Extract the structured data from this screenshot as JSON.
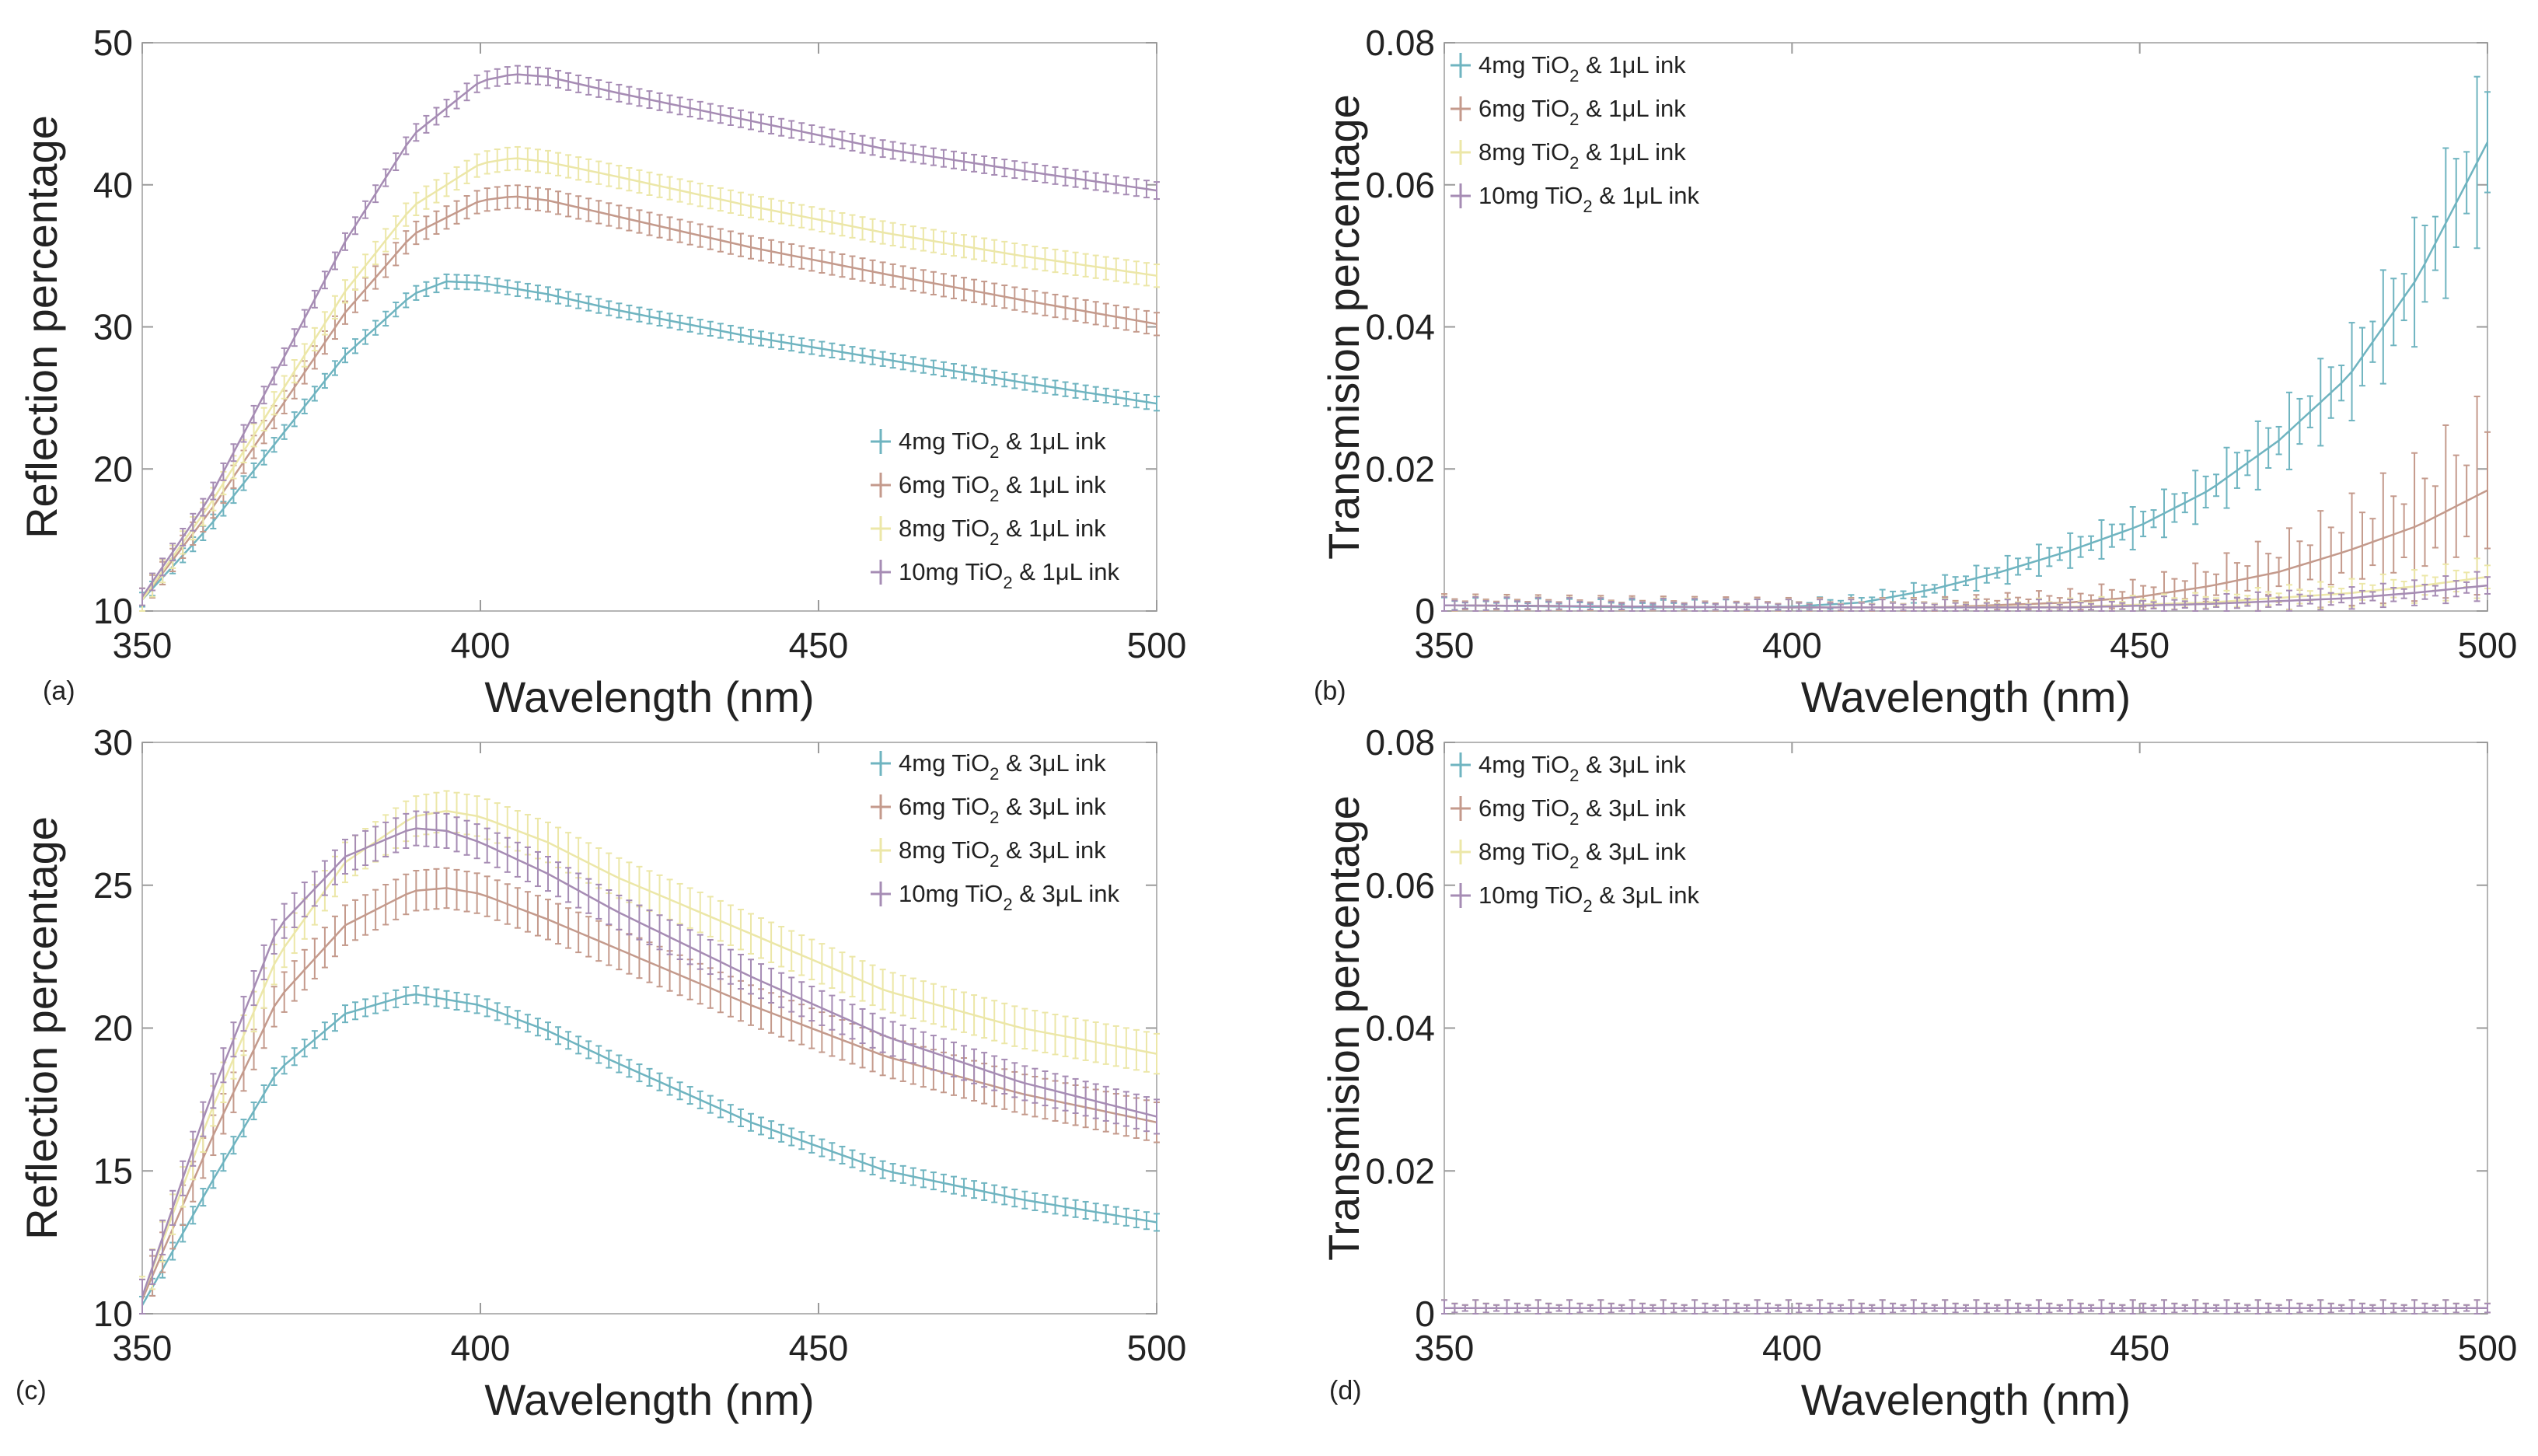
{
  "colors": {
    "4mg": "#6fb4c0",
    "6mg": "#c49a8c",
    "8mg": "#ece7a8",
    "10mg": "#a68cb4"
  },
  "chart_data": [
    {
      "panel": "(a)",
      "type": "line",
      "xlabel": "Wavelength (nm)",
      "ylabel": "Reflection percentage",
      "xlim": [
        350,
        500
      ],
      "ylim": [
        10,
        50
      ],
      "xticks": [
        "350",
        "400",
        "450",
        "500"
      ],
      "yticks": [
        "10",
        "20",
        "30",
        "40",
        "50"
      ],
      "legend_position": "bottom-right",
      "series": [
        {
          "name": "4mg TiO2 & 1µL ink",
          "key": "4mg",
          "legend_pre": "4mg TiO",
          "legend_sub": "2",
          "legend_post": " & 1μL ink",
          "x": [
            350,
            360,
            370,
            380,
            390,
            395,
            400,
            410,
            420,
            440,
            460,
            480,
            500
          ],
          "y": [
            10.8,
            16.0,
            22.0,
            28.0,
            32.3,
            33.2,
            33.1,
            32.3,
            31.2,
            29.3,
            27.7,
            26.1,
            24.6
          ],
          "err": 0.5
        },
        {
          "name": "6mg TiO2 & 1µL ink",
          "key": "6mg",
          "legend_pre": "6mg TiO",
          "legend_sub": "2",
          "legend_post": " & 1μL ink",
          "x": [
            350,
            360,
            370,
            380,
            390,
            400,
            405,
            410,
            420,
            440,
            460,
            480,
            500
          ],
          "y": [
            10.8,
            17.0,
            24.0,
            31.0,
            36.5,
            38.9,
            39.2,
            38.9,
            37.8,
            35.6,
            33.7,
            31.9,
            30.2
          ],
          "err": 0.8
        },
        {
          "name": "8mg TiO2 & 1µL ink",
          "key": "8mg",
          "legend_pre": "8mg TiO",
          "legend_sub": "2",
          "legend_post": " & 1μL ink",
          "x": [
            350,
            360,
            370,
            380,
            390,
            400,
            405,
            410,
            420,
            440,
            460,
            480,
            500
          ],
          "y": [
            10.8,
            17.5,
            25.0,
            32.5,
            38.5,
            41.5,
            41.9,
            41.6,
            40.6,
            38.5,
            36.6,
            35.0,
            33.6
          ],
          "err": 0.8
        },
        {
          "name": "10mg TiO2 & 1µL ink",
          "key": "10mg",
          "legend_pre": "10mg TiO",
          "legend_sub": "2",
          "legend_post": " & 1μL ink",
          "x": [
            350,
            360,
            370,
            380,
            390,
            400,
            405,
            410,
            420,
            440,
            460,
            480,
            500
          ],
          "y": [
            11.0,
            18.0,
            27.0,
            36.0,
            43.5,
            47.3,
            47.8,
            47.6,
            46.5,
            44.5,
            42.5,
            41.0,
            39.6
          ],
          "err": 0.6
        }
      ]
    },
    {
      "panel": "(b)",
      "type": "line",
      "xlabel": "Wavelength (nm)",
      "ylabel": "Transmision percentage",
      "xlim": [
        350,
        500
      ],
      "ylim": [
        0,
        0.08
      ],
      "xticks": [
        "350",
        "400",
        "450",
        "500"
      ],
      "yticks": [
        "0",
        "0.02",
        "0.04",
        "0.06",
        "0.08"
      ],
      "legend_position": "top-left",
      "series": [
        {
          "name": "4mg TiO2 & 1µL ink",
          "key": "4mg",
          "legend_pre": "4mg TiO",
          "legend_sub": "2",
          "legend_post": " & 1μL ink",
          "x": [
            350,
            380,
            400,
            410,
            420,
            430,
            440,
            450,
            460,
            470,
            480,
            490,
            500
          ],
          "y": [
            0.0008,
            0.0005,
            0.0006,
            0.0012,
            0.003,
            0.0055,
            0.0085,
            0.012,
            0.017,
            0.024,
            0.033,
            0.047,
            0.066
          ],
          "err_base": 0.0006,
          "err_frac": 0.11
        },
        {
          "name": "6mg TiO2 & 1µL ink",
          "key": "6mg",
          "legend_pre": "6mg TiO",
          "legend_sub": "2",
          "legend_post": " & 1μL ink",
          "x": [
            350,
            400,
            420,
            440,
            450,
            460,
            470,
            480,
            490,
            500
          ],
          "y": [
            0.0008,
            0.0005,
            0.0005,
            0.0012,
            0.002,
            0.0035,
            0.0055,
            0.0085,
            0.012,
            0.017
          ],
          "err_base": 0.0006,
          "err_frac": 0.5
        },
        {
          "name": "8mg TiO2 & 1µL ink",
          "key": "8mg",
          "legend_pre": "8mg TiO",
          "legend_sub": "2",
          "legend_post": " & 1μL ink",
          "x": [
            350,
            400,
            440,
            460,
            480,
            490,
            500
          ],
          "y": [
            0.0008,
            0.0005,
            0.0006,
            0.0012,
            0.0025,
            0.0035,
            0.0048
          ],
          "err_base": 0.0006,
          "err_frac": 0.25
        },
        {
          "name": "10mg TiO2 & 1µL ink",
          "key": "10mg",
          "legend_pre": "10mg TiO",
          "legend_sub": "2",
          "legend_post": " & 1μL ink",
          "x": [
            350,
            400,
            440,
            460,
            480,
            490,
            500
          ],
          "y": [
            0.0008,
            0.0005,
            0.0005,
            0.001,
            0.0018,
            0.0026,
            0.0036
          ],
          "err_base": 0.0006,
          "err_frac": 0.2
        }
      ]
    },
    {
      "panel": "(c)",
      "type": "line",
      "xlabel": "Wavelength (nm)",
      "ylabel": "Reflection percentage",
      "xlim": [
        350,
        500
      ],
      "ylim": [
        10,
        30
      ],
      "xticks": [
        "350",
        "400",
        "450",
        "500"
      ],
      "yticks": [
        "10",
        "15",
        "20",
        "25",
        "30"
      ],
      "legend_position": "top-right",
      "series": [
        {
          "name": "4mg TiO2 & 3µL ink",
          "key": "4mg",
          "legend_pre": "4mg TiO",
          "legend_sub": "2",
          "legend_post": " & 3μL ink",
          "x": [
            350,
            360,
            370,
            380,
            390,
            400,
            410,
            420,
            440,
            460,
            480,
            500
          ],
          "y": [
            10.3,
            14.5,
            18.5,
            20.5,
            21.2,
            20.8,
            19.9,
            18.8,
            16.7,
            15.0,
            14.0,
            13.2
          ],
          "err": 0.3
        },
        {
          "name": "6mg TiO2 & 3µL ink",
          "key": "6mg",
          "legend_pre": "6mg TiO",
          "legend_sub": "2",
          "legend_post": " & 3μL ink",
          "x": [
            350,
            360,
            370,
            380,
            390,
            395,
            400,
            410,
            420,
            440,
            460,
            480,
            500
          ],
          "y": [
            10.5,
            16.0,
            21.0,
            23.6,
            24.8,
            24.9,
            24.7,
            23.8,
            22.8,
            20.8,
            19.0,
            17.7,
            16.7
          ],
          "err": 0.7
        },
        {
          "name": "8mg TiO2 & 3µL ink",
          "key": "8mg",
          "legend_pre": "8mg TiO",
          "legend_sub": "2",
          "legend_post": " & 3μL ink",
          "x": [
            350,
            360,
            370,
            380,
            390,
            395,
            400,
            410,
            420,
            440,
            460,
            480,
            500
          ],
          "y": [
            10.6,
            17.0,
            22.5,
            25.8,
            27.4,
            27.6,
            27.4,
            26.5,
            25.3,
            23.3,
            21.3,
            20.0,
            19.1
          ],
          "err": 0.7
        },
        {
          "name": "10mg TiO2 & 3µL ink",
          "key": "10mg",
          "legend_pre": "10mg TiO",
          "legend_sub": "2",
          "legend_post": " & 3μL ink",
          "x": [
            350,
            360,
            370,
            380,
            390,
            395,
            400,
            410,
            420,
            440,
            460,
            480,
            500
          ],
          "y": [
            10.6,
            17.5,
            23.5,
            26.0,
            27.0,
            26.9,
            26.5,
            25.4,
            24.1,
            21.8,
            19.7,
            18.1,
            16.9
          ],
          "err": 0.6
        }
      ]
    },
    {
      "panel": "(d)",
      "type": "line",
      "xlabel": "Wavelength (nm)",
      "ylabel": "Transmision percentage",
      "xlim": [
        350,
        500
      ],
      "ylim": [
        0,
        0.08
      ],
      "xticks": [
        "350",
        "400",
        "450",
        "500"
      ],
      "yticks": [
        "0",
        "0.02",
        "0.04",
        "0.06",
        "0.08"
      ],
      "legend_position": "top-left",
      "series": [
        {
          "name": "4mg TiO2 & 3µL ink",
          "key": "4mg",
          "legend_pre": "4mg TiO",
          "legend_sub": "2",
          "legend_post": " & 3μL ink",
          "x": [
            350,
            500
          ],
          "y": [
            0.0008,
            0.0008
          ],
          "err_base": 0.0007,
          "err_frac": 0
        },
        {
          "name": "6mg TiO2 & 3µL ink",
          "key": "6mg",
          "legend_pre": "6mg TiO",
          "legend_sub": "2",
          "legend_post": " & 3μL ink",
          "x": [
            350,
            500
          ],
          "y": [
            0.0008,
            0.0008
          ],
          "err_base": 0.0007,
          "err_frac": 0
        },
        {
          "name": "8mg TiO2 & 3µL ink",
          "key": "8mg",
          "legend_pre": "8mg TiO",
          "legend_sub": "2",
          "legend_post": " & 3μL ink",
          "x": [
            350,
            500
          ],
          "y": [
            0.0008,
            0.0008
          ],
          "err_base": 0.0007,
          "err_frac": 0
        },
        {
          "name": "10mg TiO2 & 3µL ink",
          "key": "10mg",
          "legend_pre": "10mg TiO",
          "legend_sub": "2",
          "legend_post": " & 3μL ink",
          "x": [
            350,
            500
          ],
          "y": [
            0.0008,
            0.0008
          ],
          "err_base": 0.0007,
          "err_frac": 0
        }
      ]
    }
  ]
}
